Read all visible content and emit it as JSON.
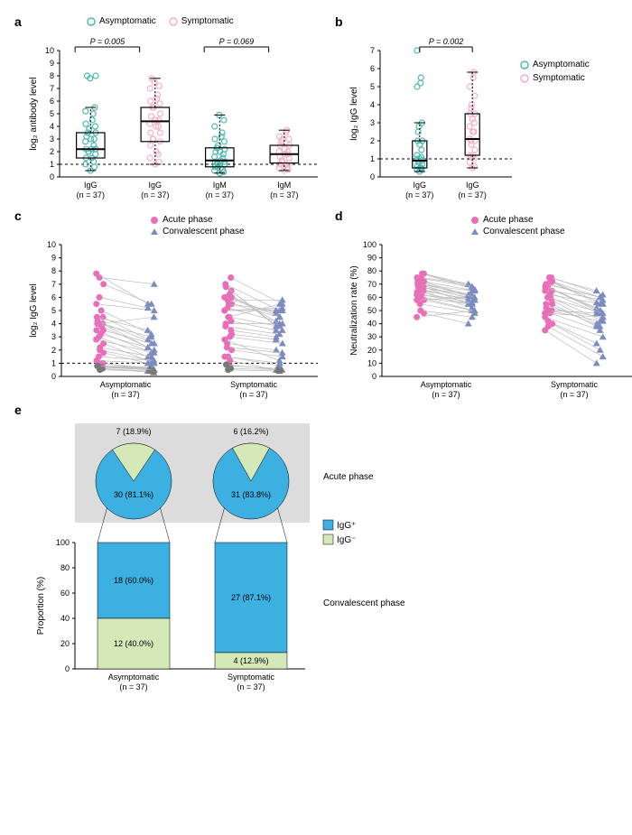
{
  "colors": {
    "teal": "#4db8b0",
    "pink": "#f5b0c2",
    "magenta": "#e86eb8",
    "blue": "#7c8cc0",
    "gray": "#777",
    "black": "#000",
    "piebg": "#dcdcdc",
    "iggPos": "#3cb0e0",
    "iggNeg": "#d4e8b8"
  },
  "panelLabels": {
    "a": "a",
    "b": "b",
    "c": "c",
    "d": "d",
    "e": "e"
  },
  "legendA": {
    "asym": "Asymptomatic",
    "sym": "Symptomatic"
  },
  "legendCD": {
    "acute": "Acute phase",
    "conv": "Convalescent phase"
  },
  "legendE": {
    "pos": "IgG⁺",
    "neg": "IgG⁻"
  },
  "panelA": {
    "ylabel": "log₂ antibody level",
    "ylim": [
      0,
      10
    ],
    "xgroups": [
      "IgG\n(n = 37)",
      "IgG\n(n = 37)",
      "IgM\n(n = 37)",
      "IgM\n(n = 37)"
    ],
    "pvals": [
      "P = 0.005",
      "P = 0.069"
    ],
    "pvalX": [
      0.185,
      0.685
    ],
    "boxes": [
      {
        "x": 0.12,
        "q1": 1.5,
        "med": 2.2,
        "q3": 3.5,
        "wl": 0.5,
        "wh": 5.5,
        "col": "teal"
      },
      {
        "x": 0.37,
        "q1": 2.8,
        "med": 4.4,
        "q3": 5.5,
        "wl": 1.0,
        "wh": 7.8,
        "col": "pink"
      },
      {
        "x": 0.62,
        "q1": 0.8,
        "med": 1.3,
        "q3": 2.3,
        "wl": 0.3,
        "wh": 4.9,
        "col": "teal"
      },
      {
        "x": 0.87,
        "q1": 1.1,
        "med": 1.8,
        "q3": 2.5,
        "wl": 0.5,
        "wh": 3.7,
        "col": "pink"
      }
    ],
    "points": {
      "0.12": [
        0.5,
        0.8,
        1.0,
        1.2,
        1.5,
        1.5,
        1.8,
        2.0,
        2.0,
        2.2,
        2.2,
        2.2,
        2.5,
        2.8,
        3.0,
        3.0,
        3.2,
        3.5,
        3.5,
        3.8,
        4.0,
        4.2,
        4.5,
        5.0,
        5.2,
        5.5,
        7.8,
        8.0,
        8.0
      ],
      "0.37": [
        1.0,
        1.2,
        1.5,
        1.8,
        2.0,
        2.5,
        2.8,
        3.0,
        3.0,
        3.5,
        3.5,
        4.0,
        4.0,
        4.2,
        4.5,
        4.5,
        4.8,
        5.0,
        5.5,
        5.5,
        5.8,
        6.0,
        6.2,
        6.5,
        7.0,
        7.2,
        7.5,
        7.8
      ],
      "0.62": [
        0.3,
        0.4,
        0.5,
        0.6,
        0.7,
        0.8,
        1.0,
        1.0,
        1.1,
        1.2,
        1.2,
        1.3,
        1.5,
        1.6,
        1.8,
        2.0,
        2.0,
        2.2,
        2.3,
        2.5,
        2.8,
        3.0,
        3.2,
        3.5,
        4.0,
        4.5,
        4.9
      ],
      "0.87": [
        0.5,
        0.6,
        0.7,
        0.8,
        1.0,
        1.0,
        1.1,
        1.2,
        1.3,
        1.5,
        1.6,
        1.8,
        1.8,
        2.0,
        2.0,
        2.2,
        2.5,
        2.5,
        2.8,
        3.0,
        3.0,
        3.2,
        3.5,
        3.7
      ]
    }
  },
  "panelB": {
    "ylabel": "log₂ IgG level",
    "ylim": [
      0,
      7
    ],
    "xgroups": [
      "IgG\n(n = 37)",
      "IgG\n(n = 37)"
    ],
    "pvals": [
      "P = 0.002"
    ],
    "pvalX": [
      0.5
    ],
    "boxes": [
      {
        "x": 0.3,
        "q1": 0.5,
        "med": 0.9,
        "q3": 2.0,
        "wl": 0.3,
        "wh": 3.0,
        "col": "teal"
      },
      {
        "x": 0.7,
        "q1": 1.2,
        "med": 2.1,
        "q3": 3.5,
        "wl": 0.5,
        "wh": 5.8,
        "col": "pink"
      }
    ],
    "points": {
      "0.3": [
        0.3,
        0.4,
        0.4,
        0.5,
        0.5,
        0.6,
        0.7,
        0.8,
        0.9,
        0.9,
        1.0,
        1.0,
        1.1,
        1.2,
        1.5,
        1.8,
        2.0,
        2.0,
        2.5,
        2.8,
        3.0,
        5.0,
        5.2,
        5.5,
        7.0
      ],
      "0.7": [
        0.5,
        0.6,
        0.8,
        1.0,
        1.2,
        1.2,
        1.5,
        1.8,
        2.0,
        2.0,
        2.1,
        2.5,
        2.5,
        2.8,
        3.0,
        3.2,
        3.5,
        3.5,
        3.8,
        4.0,
        4.5,
        5.0,
        5.5,
        5.8
      ]
    }
  },
  "panelC": {
    "ylabel": "log₂ IgG level",
    "ylim": [
      0,
      10
    ],
    "xgroups": [
      "Asymptomatic\n(n = 37)",
      "Symptomatic\n(n = 37)"
    ],
    "pairs": [
      [
        [
          2.0,
          1.2
        ],
        [
          2.5,
          1.0
        ],
        [
          3.0,
          1.5
        ],
        [
          3.5,
          1.8
        ],
        [
          3.8,
          2.0
        ],
        [
          4.0,
          2.2
        ],
        [
          4.0,
          3.0
        ],
        [
          4.2,
          2.5
        ],
        [
          4.5,
          2.8
        ],
        [
          5.0,
          3.2
        ],
        [
          5.5,
          5.0
        ],
        [
          6.0,
          5.2
        ],
        [
          7.0,
          5.5
        ],
        [
          7.5,
          7.0
        ],
        [
          7.8,
          5.5
        ],
        [
          1.0,
          0.6
        ],
        [
          1.0,
          0.5
        ],
        [
          0.8,
          0.5
        ],
        [
          0.8,
          0.7
        ],
        [
          0.7,
          0.5
        ],
        [
          0.6,
          0.4
        ],
        [
          1.2,
          1.0
        ],
        [
          1.5,
          1.2
        ],
        [
          1.8,
          1.0
        ],
        [
          2.2,
          1.5
        ],
        [
          2.8,
          1.8
        ],
        [
          3.2,
          2.2
        ],
        [
          3.5,
          2.5
        ],
        [
          4.0,
          4.5
        ],
        [
          4.5,
          3.5
        ]
      ],
      [
        [
          1.5,
          0.8
        ],
        [
          2.0,
          1.5
        ],
        [
          2.5,
          2.0
        ],
        [
          2.8,
          1.2
        ],
        [
          3.0,
          2.5
        ],
        [
          3.5,
          3.0
        ],
        [
          3.8,
          3.2
        ],
        [
          4.0,
          4.0
        ],
        [
          4.2,
          3.5
        ],
        [
          4.5,
          3.8
        ],
        [
          5.0,
          5.0
        ],
        [
          5.2,
          4.2
        ],
        [
          5.5,
          4.5
        ],
        [
          5.8,
          5.8
        ],
        [
          6.0,
          4.8
        ],
        [
          6.2,
          4.0
        ],
        [
          6.5,
          3.5
        ],
        [
          6.8,
          3.8
        ],
        [
          7.0,
          5.0
        ],
        [
          7.5,
          5.5
        ],
        [
          1.2,
          0.5
        ],
        [
          1.5,
          1.0
        ],
        [
          2.2,
          1.8
        ],
        [
          3.2,
          2.8
        ],
        [
          4.5,
          5.5
        ],
        [
          5.0,
          5.2
        ],
        [
          5.5,
          5.0
        ],
        [
          6.0,
          4.5
        ]
      ]
    ],
    "gray": [
      [
        [
          0.5,
          0.4
        ],
        [
          0.6,
          0.3
        ],
        [
          0.7,
          0.5
        ],
        [
          0.8,
          0.6
        ],
        [
          0.8,
          0.5
        ]
      ],
      [
        [
          0.5,
          0.4
        ],
        [
          0.6,
          0.5
        ],
        [
          0.8,
          0.6
        ],
        [
          0.9,
          0.5
        ]
      ]
    ]
  },
  "panelD": {
    "ylabel": "Neutralization rate (%)",
    "ylim": [
      0,
      100
    ],
    "xgroups": [
      "Asymptomatic\n(n = 37)",
      "Symptomatic\n(n = 37)"
    ],
    "pairs": [
      [
        [
          70,
          62
        ],
        [
          72,
          65
        ],
        [
          68,
          60
        ],
        [
          75,
          68
        ],
        [
          78,
          66
        ],
        [
          78,
          70
        ],
        [
          72,
          60
        ],
        [
          70,
          58
        ],
        [
          68,
          55
        ],
        [
          65,
          52
        ],
        [
          62,
          58
        ],
        [
          60,
          55
        ],
        [
          58,
          50
        ],
        [
          55,
          48
        ],
        [
          58,
          60
        ],
        [
          62,
          55
        ],
        [
          65,
          58
        ],
        [
          68,
          62
        ],
        [
          70,
          65
        ],
        [
          72,
          60
        ],
        [
          66,
          58
        ],
        [
          64,
          56
        ],
        [
          60,
          50
        ],
        [
          48,
          40
        ],
        [
          50,
          45
        ],
        [
          45,
          50
        ],
        [
          75,
          70
        ],
        [
          78,
          68
        ]
      ],
      [
        [
          70,
          60
        ],
        [
          72,
          55
        ],
        [
          68,
          50
        ],
        [
          65,
          48
        ],
        [
          60,
          42
        ],
        [
          58,
          40
        ],
        [
          55,
          38
        ],
        [
          52,
          45
        ],
        [
          50,
          48
        ],
        [
          48,
          35
        ],
        [
          45,
          30
        ],
        [
          42,
          25
        ],
        [
          40,
          20
        ],
        [
          38,
          15
        ],
        [
          35,
          10
        ],
        [
          62,
          55
        ],
        [
          65,
          58
        ],
        [
          68,
          52
        ],
        [
          70,
          60
        ],
        [
          75,
          62
        ],
        [
          72,
          56
        ],
        [
          68,
          50
        ],
        [
          60,
          48
        ],
        [
          55,
          38
        ],
        [
          50,
          42
        ],
        [
          48,
          45
        ],
        [
          75,
          65
        ],
        [
          72,
          60
        ]
      ]
    ]
  },
  "panelE": {
    "xgroups": [
      "Asymptomatic\n(n = 37)",
      "Symptomatic\n(n = 37)"
    ],
    "acuteLabel": "Acute phase",
    "convLabel": "Convalescent phase",
    "ylabel": "Proportion (%)",
    "pies": [
      {
        "posV": 30,
        "posP": "81.1",
        "negV": 7,
        "negP": "18.9"
      },
      {
        "posV": 31,
        "posP": "83.8",
        "negV": 6,
        "negP": "16.2"
      }
    ],
    "bars": [
      {
        "posV": 18,
        "posP": "60.0",
        "negV": 12,
        "negP": "40.0"
      },
      {
        "posV": 27,
        "posP": "87.1",
        "negV": 4,
        "negP": "12.9"
      }
    ]
  }
}
